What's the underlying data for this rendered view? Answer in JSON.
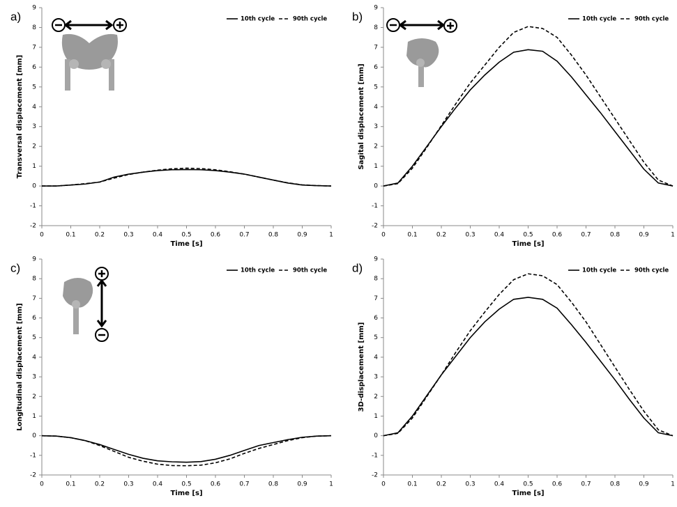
{
  "chart_data": [
    {
      "type": "line",
      "label": "a)",
      "xlabel": "Time [s]",
      "ylabel": "Transversal displacement [mm]",
      "x": [
        0,
        0.05,
        0.1,
        0.15,
        0.2,
        0.25,
        0.3,
        0.35,
        0.4,
        0.45,
        0.5,
        0.55,
        0.6,
        0.65,
        0.7,
        0.75,
        0.8,
        0.85,
        0.9,
        0.95,
        1
      ],
      "series": [
        {
          "name": "10th cycle",
          "color": "#000000",
          "line_style": "solid",
          "values": [
            0,
            0,
            0.05,
            0.1,
            0.2,
            0.45,
            0.6,
            0.7,
            0.78,
            0.82,
            0.83,
            0.82,
            0.78,
            0.7,
            0.6,
            0.45,
            0.3,
            0.15,
            0.05,
            0.02,
            0
          ]
        },
        {
          "name": "90th cycle",
          "color": "#000000",
          "line_style": "dashed",
          "values": [
            0,
            0,
            0.05,
            0.12,
            0.2,
            0.4,
            0.58,
            0.7,
            0.8,
            0.87,
            0.9,
            0.88,
            0.82,
            0.72,
            0.6,
            0.45,
            0.3,
            0.16,
            0.06,
            0.02,
            0
          ]
        }
      ],
      "xlim": [
        0,
        1
      ],
      "xticks": [
        0,
        0.1,
        0.2,
        0.3,
        0.4,
        0.5,
        0.6,
        0.7,
        0.8,
        0.9,
        1
      ],
      "ylim": [
        -2,
        9
      ],
      "yticks": [
        -2,
        -1,
        0,
        1,
        2,
        3,
        4,
        5,
        6,
        7,
        8,
        9
      ],
      "legend": "top-right"
    },
    {
      "type": "line",
      "label": "b)",
      "xlabel": "Time [s]",
      "ylabel": "Sagital displacement  [mm]",
      "x": [
        0,
        0.05,
        0.1,
        0.15,
        0.2,
        0.25,
        0.3,
        0.35,
        0.4,
        0.45,
        0.5,
        0.55,
        0.6,
        0.65,
        0.7,
        0.75,
        0.8,
        0.85,
        0.9,
        0.95,
        1
      ],
      "series": [
        {
          "name": "10th cycle",
          "color": "#000000",
          "line_style": "solid",
          "values": [
            0,
            0.15,
            1.0,
            2.0,
            3.0,
            3.95,
            4.85,
            5.6,
            6.25,
            6.75,
            6.88,
            6.8,
            6.3,
            5.5,
            4.6,
            3.7,
            2.75,
            1.8,
            0.85,
            0.15,
            0
          ]
        },
        {
          "name": "90th cycle",
          "color": "#000000",
          "line_style": "dashed",
          "values": [
            0,
            0.12,
            0.9,
            1.95,
            3.05,
            4.15,
            5.2,
            6.1,
            7.0,
            7.75,
            8.05,
            7.95,
            7.5,
            6.6,
            5.6,
            4.5,
            3.4,
            2.3,
            1.2,
            0.3,
            0
          ]
        }
      ],
      "xlim": [
        0,
        1
      ],
      "xticks": [
        0,
        0.1,
        0.2,
        0.3,
        0.4,
        0.5,
        0.6,
        0.7,
        0.8,
        0.9,
        1
      ],
      "ylim": [
        -2,
        9
      ],
      "yticks": [
        -2,
        -1,
        0,
        1,
        2,
        3,
        4,
        5,
        6,
        7,
        8,
        9
      ],
      "legend": "top-right"
    },
    {
      "type": "line",
      "label": "c)",
      "xlabel": "Time [s]",
      "ylabel": "Longitudinal displacement [mm]",
      "x": [
        0,
        0.05,
        0.1,
        0.15,
        0.2,
        0.25,
        0.3,
        0.35,
        0.4,
        0.45,
        0.5,
        0.55,
        0.6,
        0.65,
        0.7,
        0.75,
        0.8,
        0.85,
        0.9,
        0.95,
        1
      ],
      "series": [
        {
          "name": "10th cycle",
          "color": "#000000",
          "line_style": "solid",
          "values": [
            0,
            -0.02,
            -0.1,
            -0.25,
            -0.45,
            -0.7,
            -0.95,
            -1.15,
            -1.28,
            -1.33,
            -1.35,
            -1.32,
            -1.2,
            -1.0,
            -0.75,
            -0.5,
            -0.35,
            -0.2,
            -0.08,
            -0.02,
            0
          ]
        },
        {
          "name": "90th cycle",
          "color": "#000000",
          "line_style": "dashed",
          "values": [
            0,
            -0.02,
            -0.1,
            -0.25,
            -0.5,
            -0.8,
            -1.1,
            -1.3,
            -1.45,
            -1.52,
            -1.53,
            -1.5,
            -1.38,
            -1.18,
            -0.9,
            -0.65,
            -0.45,
            -0.25,
            -0.1,
            -0.02,
            0
          ]
        }
      ],
      "xlim": [
        0,
        1
      ],
      "xticks": [
        0,
        0.1,
        0.2,
        0.3,
        0.4,
        0.5,
        0.6,
        0.7,
        0.8,
        0.9,
        1
      ],
      "ylim": [
        -2,
        9
      ],
      "yticks": [
        -2,
        -1,
        0,
        1,
        2,
        3,
        4,
        5,
        6,
        7,
        8,
        9
      ],
      "legend": "top-right"
    },
    {
      "type": "line",
      "label": "d)",
      "xlabel": "Time [s]",
      "ylabel": "3D-displacement [mm]",
      "x": [
        0,
        0.05,
        0.1,
        0.15,
        0.2,
        0.25,
        0.3,
        0.35,
        0.4,
        0.45,
        0.5,
        0.55,
        0.6,
        0.65,
        0.7,
        0.75,
        0.8,
        0.85,
        0.9,
        0.95,
        1
      ],
      "series": [
        {
          "name": "10th cycle",
          "color": "#000000",
          "line_style": "solid",
          "values": [
            0,
            0.15,
            1.0,
            2.05,
            3.1,
            4.05,
            5.0,
            5.8,
            6.45,
            6.95,
            7.05,
            6.95,
            6.5,
            5.65,
            4.75,
            3.8,
            2.85,
            1.85,
            0.9,
            0.15,
            0
          ]
        },
        {
          "name": "90th cycle",
          "color": "#000000",
          "line_style": "dashed",
          "values": [
            0,
            0.12,
            0.9,
            2.0,
            3.1,
            4.25,
            5.35,
            6.3,
            7.2,
            7.95,
            8.25,
            8.15,
            7.7,
            6.8,
            5.8,
            4.65,
            3.5,
            2.35,
            1.25,
            0.3,
            0
          ]
        }
      ],
      "xlim": [
        0,
        1
      ],
      "xticks": [
        0,
        0.1,
        0.2,
        0.3,
        0.4,
        0.5,
        0.6,
        0.7,
        0.8,
        0.9,
        1
      ],
      "ylim": [
        -2,
        9
      ],
      "yticks": [
        -2,
        -1,
        0,
        1,
        2,
        3,
        4,
        5,
        6,
        7,
        8,
        9
      ],
      "legend": "top-right"
    }
  ]
}
